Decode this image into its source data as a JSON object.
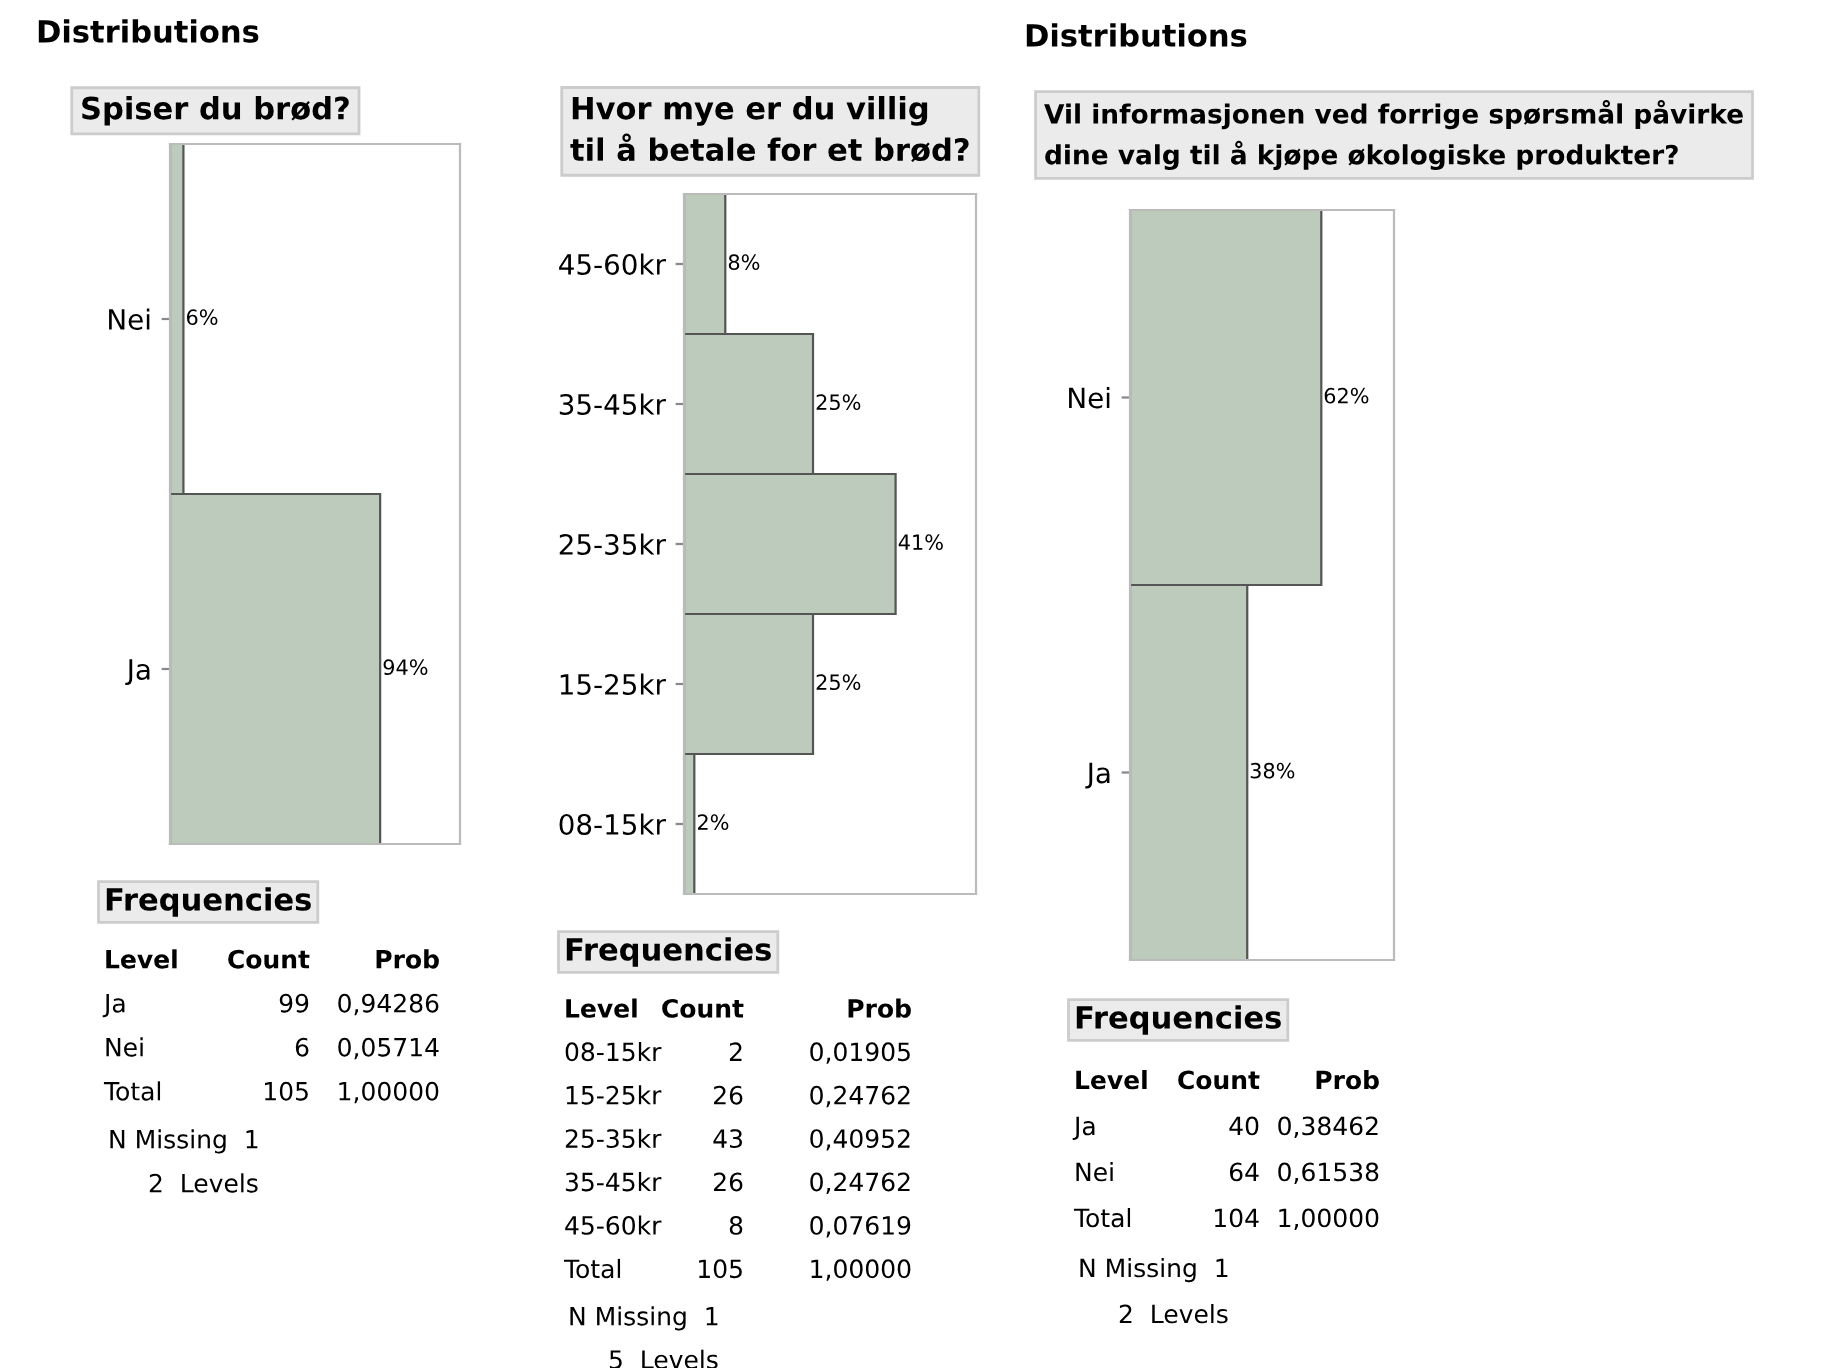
{
  "chart_data": [
    {
      "type": "bar",
      "orientation": "horizontal",
      "title": "Distributions",
      "subtitle": "Spiser du brød?",
      "categories": [
        "Nei",
        "Ja"
      ],
      "values": [
        6,
        94
      ],
      "value_labels": [
        "6%",
        "94%"
      ],
      "color": "#bccbbb",
      "annotations": [
        "Frequencies",
        "Level",
        "Count",
        "Prob",
        "Ja",
        "99",
        "0,94286",
        "Nei",
        "6",
        "0,05714",
        "Total",
        "105",
        "1,00000",
        "N Missing  1",
        "2  Levels"
      ]
    },
    {
      "type": "bar",
      "orientation": "horizontal",
      "subtitle": "Hvor mye er du villig\ntil å betale for et brød?",
      "categories": [
        "45-60kr",
        "35-45kr",
        "25-35kr",
        "15-25kr",
        "08-15kr"
      ],
      "values": [
        8,
        25,
        41,
        25,
        2
      ],
      "value_labels": [
        "8%",
        "25%",
        "41%",
        "25%",
        "2%"
      ],
      "color": "#bccbbb",
      "annotations": [
        "Frequencies",
        "Level",
        "Count",
        "Prob",
        "08-15kr",
        "2",
        "0,01905",
        "15-25kr",
        "26",
        "0,24762",
        "25-35kr",
        "43",
        "0,40952",
        "35-45kr",
        "26",
        "0,24762",
        "45-60kr",
        "8",
        "0,07619",
        "Total",
        "105",
        "1,00000",
        "N Missing  1",
        "5  Levels"
      ]
    },
    {
      "type": "bar",
      "orientation": "horizontal",
      "title": "Distributions",
      "subtitle": "Vil informasjonen ved forrige spørsmål påvirke\ndine valg til å kjøpe økologiske produkter?",
      "categories": [
        "Nei",
        "Ja"
      ],
      "values": [
        62,
        38
      ],
      "value_labels": [
        "62%",
        "38%"
      ],
      "color": "#bccbbb",
      "annotations": [
        "Frequencies",
        "Level",
        "Count",
        "Prob",
        "Ja",
        "40",
        "0,38462",
        "Nei",
        "64",
        "0,61538",
        "Total",
        "104",
        "1,00000",
        "N Missing  1",
        "2  Levels"
      ]
    }
  ]
}
